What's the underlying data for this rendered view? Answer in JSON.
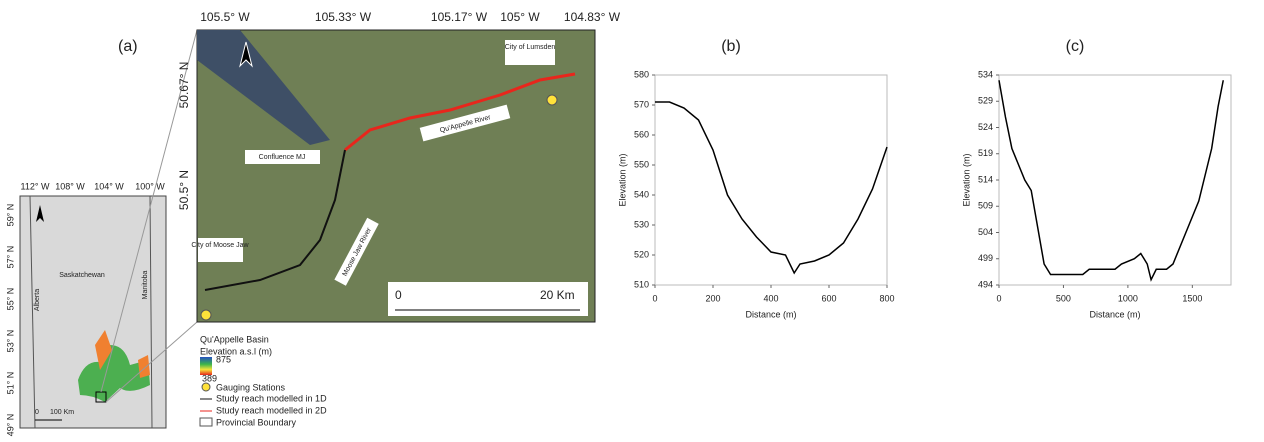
{
  "panel_a": {
    "label": "(a)",
    "main_map": {
      "lon_ticks": [
        "105.5° W",
        "105.33° W",
        "105.17° W",
        "105° W",
        "104.83° W"
      ],
      "lat_ticks": [
        "50.67° N",
        "50.5° N"
      ],
      "labels": [
        "City of Lumsden",
        "Qu'Appelle River",
        "Confluence MJ",
        "Moose Jaw River",
        "City of Moose Jaw"
      ],
      "scale": [
        "0",
        "20 Km"
      ]
    },
    "inset_map": {
      "lon_ticks": [
        "112° W",
        "108° W",
        "104° W",
        "100° W"
      ],
      "lat_ticks": [
        "59° N",
        "57° N",
        "55° N",
        "53° N",
        "51° N",
        "49° N"
      ],
      "labels": [
        "Alberta",
        "Saskatchewan",
        "Manitoba"
      ],
      "scale": [
        "0",
        "100 Km"
      ]
    },
    "legend": {
      "title": "Qu'Appelle Basin",
      "elevation_title": "Elevation a.s.l (m)",
      "elevation_max": 875,
      "elevation_min": 389,
      "items": [
        "Gauging Stations",
        "Study reach modelled in 1D",
        "Study reach modelled in 2D",
        "Provincial Boundary"
      ]
    }
  },
  "chart_data": [
    {
      "type": "line",
      "label": "(b)",
      "x_label": "Distance (m)",
      "y_label": "Elevation (m)",
      "x": [
        0,
        50,
        100,
        150,
        200,
        250,
        300,
        350,
        400,
        450,
        480,
        500,
        550,
        600,
        650,
        700,
        750,
        800
      ],
      "series": [
        {
          "color": "#000000",
          "values": [
            571,
            571,
            569,
            565,
            555,
            540,
            532,
            526,
            521,
            520,
            514,
            517,
            518,
            520,
            524,
            532,
            542,
            556
          ]
        }
      ],
      "xlim": [
        0,
        800
      ],
      "xticks": [
        0,
        200,
        400,
        600,
        800
      ],
      "ylim": [
        510,
        580
      ],
      "yticks": [
        510,
        520,
        530,
        540,
        550,
        560,
        570,
        580
      ]
    },
    {
      "type": "line",
      "label": "(c)",
      "x_label": "Distance (m)",
      "y_label": "Elevation (m)",
      "x": [
        0,
        50,
        100,
        200,
        250,
        300,
        350,
        400,
        500,
        650,
        700,
        900,
        950,
        1050,
        1100,
        1150,
        1180,
        1220,
        1300,
        1350,
        1450,
        1550,
        1650,
        1700,
        1740
      ],
      "series": [
        {
          "color": "#000000",
          "values": [
            533,
            526,
            520,
            514,
            512,
            505,
            498,
            496,
            496,
            496,
            497,
            497,
            498,
            499,
            500,
            498,
            495,
            497,
            497,
            498,
            504,
            510,
            520,
            528,
            533
          ]
        }
      ],
      "xlim": [
        0,
        1800
      ],
      "xticks": [
        0,
        500,
        1000,
        1500
      ],
      "ylim": [
        494,
        534
      ],
      "yticks": [
        494,
        499,
        504,
        509,
        514,
        519,
        524,
        529,
        534
      ]
    }
  ]
}
